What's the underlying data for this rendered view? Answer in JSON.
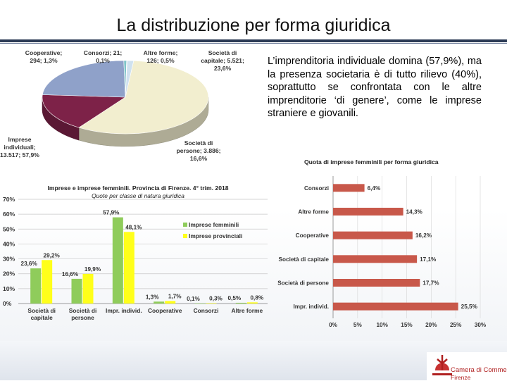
{
  "page": {
    "title": "La distribuzione per forma giuridica",
    "paragraph": "L’imprenditoria individuale domina (57,9%), ma la presenza societaria è di tutto rilievo (40%), soprattutto se confrontata con le altre imprenditorie ‘di genere’, come le imprese straniere e giovanili.",
    "logo": {
      "line1": "Camera di Commercio",
      "line2": "Firenze"
    }
  },
  "chart_data": [
    {
      "type": "pie",
      "slices": [
        {
          "label": "Imprese individuali",
          "value": 13517,
          "percent": 57.9,
          "color": "#f2eecf"
        },
        {
          "label": "Società di persone",
          "value": 3886,
          "percent": 16.6,
          "color": "#7d2248"
        },
        {
          "label": "Società di capitale",
          "value": 5521,
          "percent": 23.6,
          "color": "#8fa1c9"
        },
        {
          "label": "Altre forme",
          "value": 126,
          "percent": 0.5,
          "color": "#7fc3c9"
        },
        {
          "label": "Consorzi",
          "value": 21,
          "percent": 0.1,
          "color": "#ea7d33"
        },
        {
          "label": "Cooperative",
          "value": 294,
          "percent": 1.3,
          "color": "#cfe1ef"
        }
      ],
      "labels": {
        "cooperative": [
          "Cooperative;",
          "294; 1,3%"
        ],
        "consorzi": [
          "Consorzi; 21;",
          "0,1%"
        ],
        "altre": [
          "Altre forme;",
          "126; 0,5%"
        ],
        "capitale": [
          "Società di",
          "capitale; 5.521;",
          "23,6%"
        ],
        "persone": [
          "Società di",
          "persone; 3.886;",
          "16,6%"
        ],
        "individuali": [
          "Imprese",
          "individuali;",
          "13.517; 57,9%"
        ]
      }
    },
    {
      "type": "bar",
      "title": "Imprese e imprese femminili. Provincia di Firenze. 4° trim. 2018",
      "subtitle": "Quote per classe di natura giuridica",
      "categories": [
        "Società di capitale",
        "Società di persone",
        "Impr. individ.",
        "Cooperative",
        "Consorzi",
        "Altre forme"
      ],
      "category_lines": [
        [
          "Società di",
          "capitale"
        ],
        [
          "Società di",
          "persone"
        ],
        [
          "Impr. individ."
        ],
        [
          "Cooperative"
        ],
        [
          "Consorzi"
        ],
        [
          "Altre forme"
        ]
      ],
      "series": [
        {
          "name": "Imprese femminili",
          "values": [
            23.6,
            16.6,
            57.9,
            1.3,
            0.1,
            0.5
          ],
          "labels": [
            "23,6%",
            "16,6%",
            "57,9%",
            "1,3%",
            "0,1%",
            "0,5%"
          ],
          "color": "#8fcc5b"
        },
        {
          "name": "Imprese provinciali",
          "values": [
            29.2,
            19.9,
            48.1,
            1.7,
            0.3,
            0.8
          ],
          "labels": [
            "29,2%",
            "19,9%",
            "48,1%",
            "1,7%",
            "0,3%",
            "0,8%"
          ],
          "color": "#ffff1a"
        }
      ],
      "yticks": [
        "0%",
        "10%",
        "20%",
        "30%",
        "40%",
        "50%",
        "60%",
        "70%"
      ],
      "ylim": [
        0,
        70
      ],
      "legend": "right"
    },
    {
      "type": "bar",
      "orientation": "horizontal",
      "title": "Quota di imprese femminili per forma giuridica",
      "categories": [
        "Consorzi",
        "Altre forme",
        "Cooperative",
        "Società di capitale",
        "Società di persone",
        "Impr. individ."
      ],
      "values": [
        6.4,
        14.3,
        16.2,
        17.1,
        17.7,
        25.5
      ],
      "value_labels": [
        "6,4%",
        "14,3%",
        "16,2%",
        "17,1%",
        "17,7%",
        "25,5%"
      ],
      "xticks": [
        "0%",
        "5%",
        "10%",
        "15%",
        "20%",
        "25%",
        "30%"
      ],
      "xlim": [
        0,
        30
      ],
      "color": "#c8584a"
    }
  ]
}
